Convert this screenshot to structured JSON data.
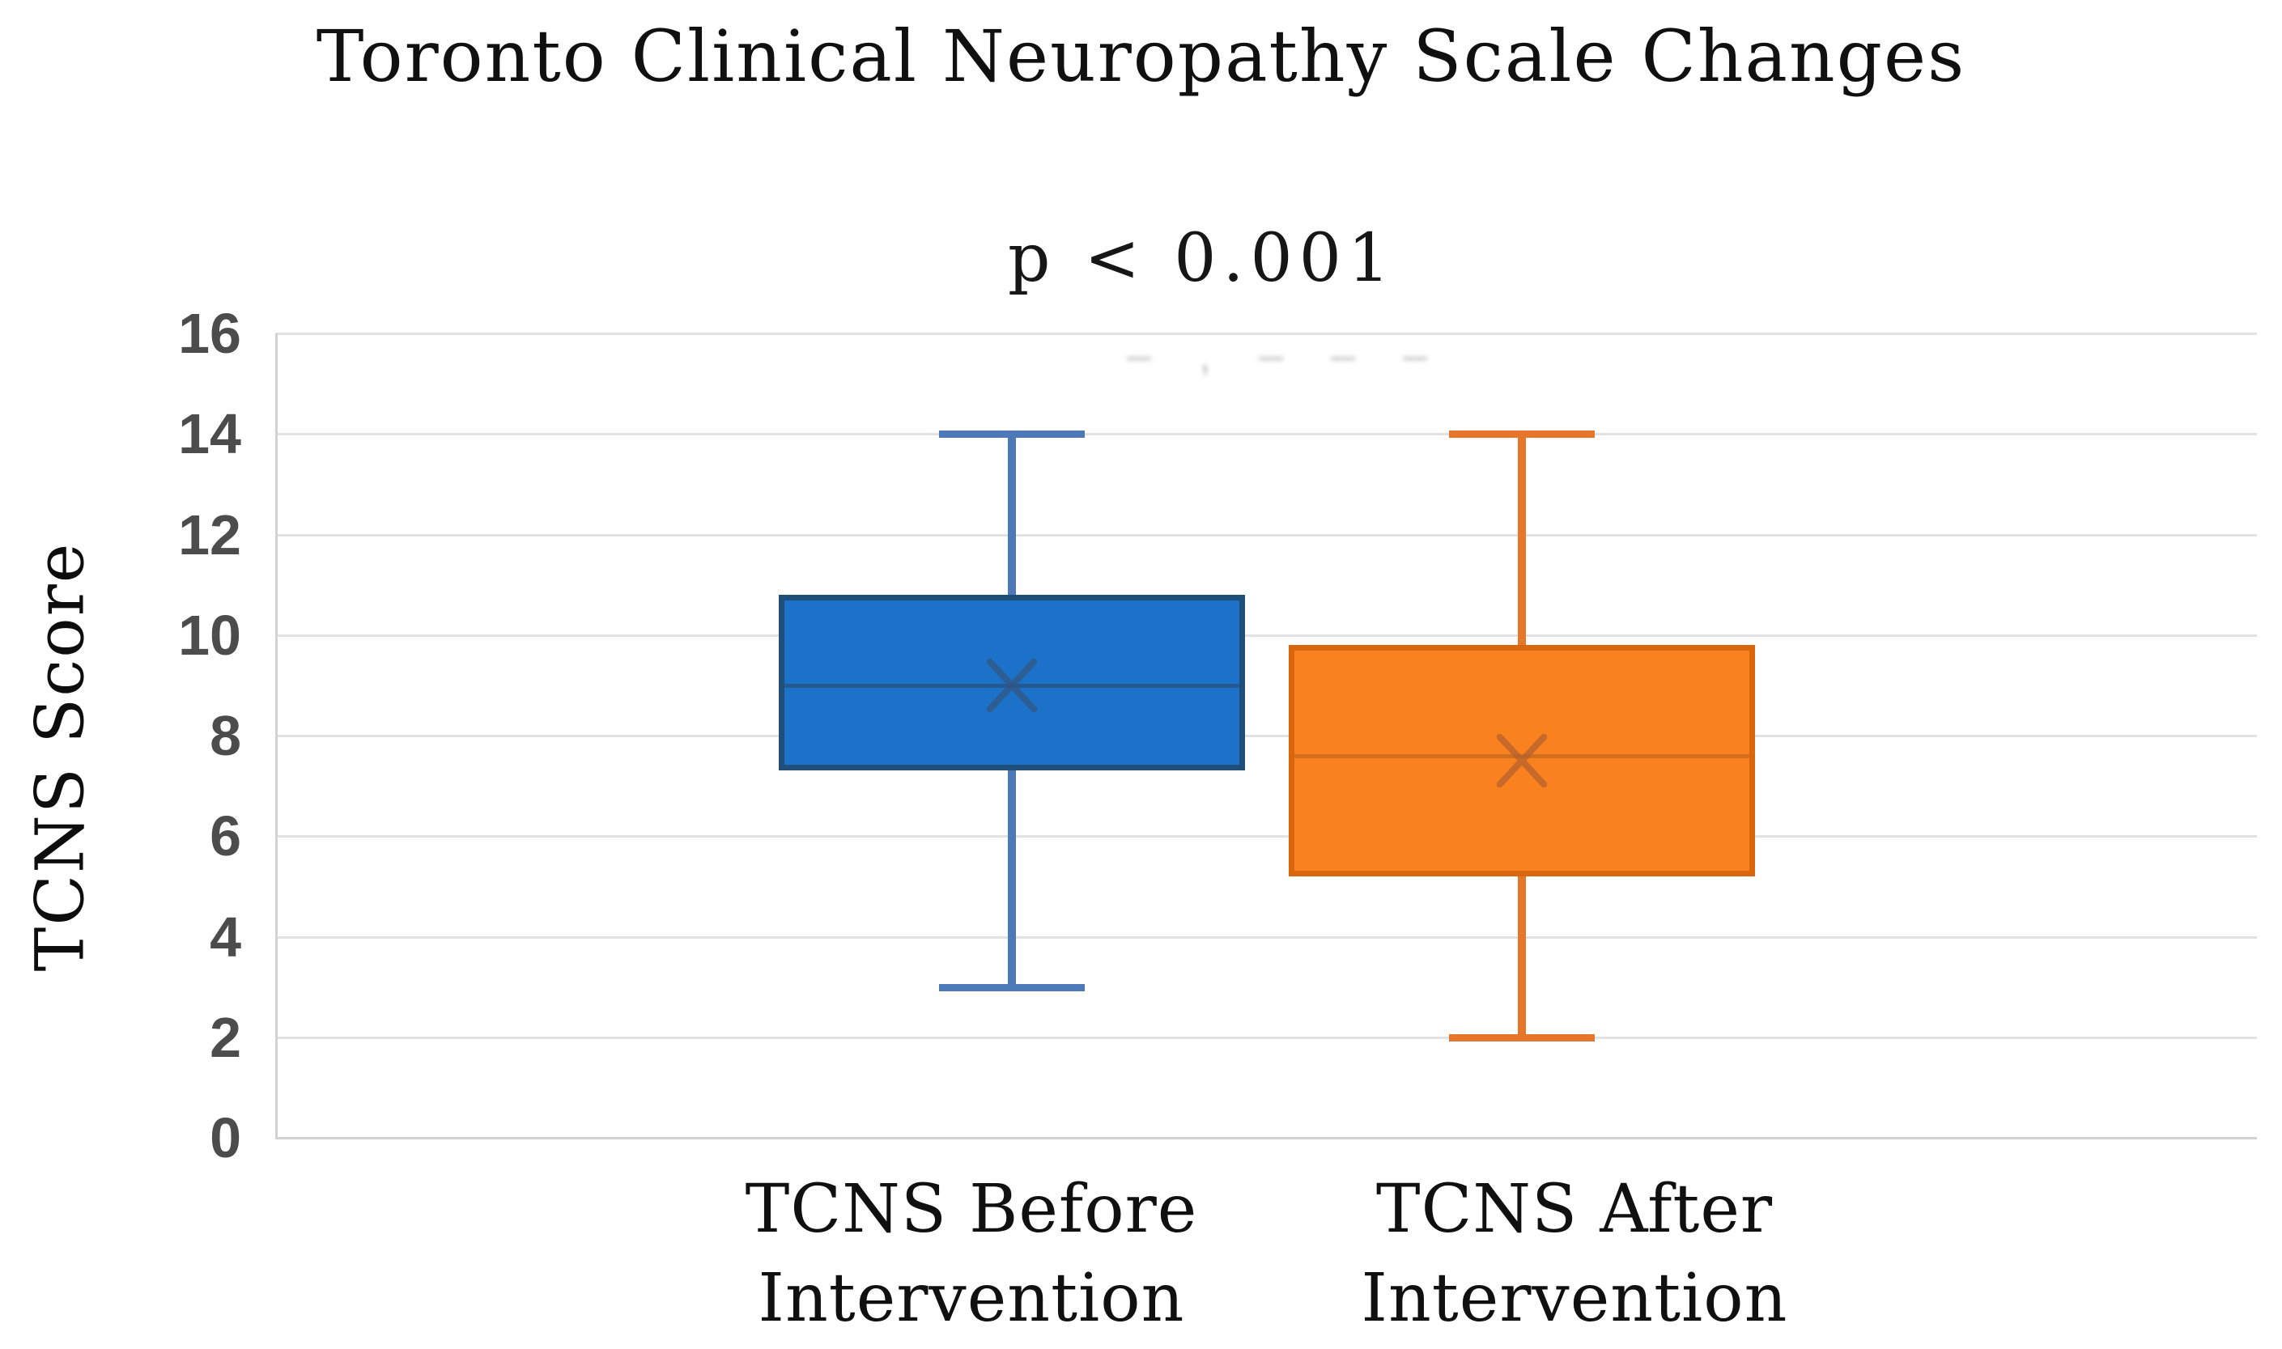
{
  "chart_data": {
    "type": "box",
    "title": "Toronto Clinical Neuropathy Scale Changes",
    "annotation": "p < 0.001",
    "faded_remnant": "‒ , ‒ ‒ ‒",
    "y_axis_title": "TCNS Score",
    "xlabel": "",
    "ylabel": "TCNS Score",
    "ylim": [
      0,
      16
    ],
    "y_tick_step": 2,
    "y_ticks": [
      16,
      14,
      12,
      10,
      8,
      6,
      4,
      2,
      0
    ],
    "grid": "horizontal",
    "legend_position": "none",
    "categories": [
      "TCNS Before Intervention",
      "TCNS After Intervention"
    ],
    "series": [
      {
        "name": "TCNS Before Intervention",
        "label_lines": [
          "TCNS Before",
          "Intervention"
        ],
        "whisker_low": 3,
        "q1": 7.3,
        "median": 9,
        "mean": 9,
        "q3": 10.8,
        "whisker_high": 14,
        "fill": "#1B72C8",
        "border": "#1F4E79",
        "whisker_color": "#4E79B8",
        "median_color": "#2A5280",
        "mean_color": "#33567F"
      },
      {
        "name": "TCNS After Intervention",
        "label_lines": [
          "TCNS After",
          "Intervention"
        ],
        "whisker_low": 2,
        "q1": 5.2,
        "median": 7.6,
        "mean": 7.5,
        "q3": 9.8,
        "whisker_high": 14,
        "fill": "#FA811F",
        "border": "#D9660D",
        "whisker_color": "#E5762A",
        "median_color": "#C76A22",
        "mean_color": "#B4612D"
      }
    ],
    "colors": {
      "gridline": "#E2E2E2",
      "axis_line": "#D2D2D2",
      "tick_label": "#4C4C4C",
      "text": "#111111"
    }
  }
}
